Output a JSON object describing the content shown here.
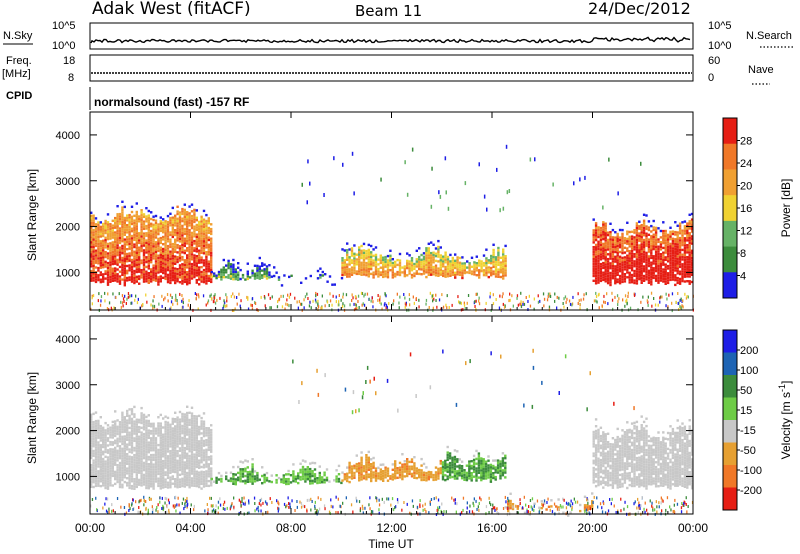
{
  "header": {
    "station": "Adak West (fitACF)",
    "beam": "Beam 11",
    "date": "24/Dec/2012"
  },
  "panels": {
    "nsky": {
      "label": "N.Sky",
      "tick_top": "10^5",
      "tick_bot": "10^0",
      "right_label": "N.Search",
      "right_tick_top": "10^5",
      "right_tick_bot": "10^0"
    },
    "freq": {
      "label_line1": "Freq.",
      "label_line2": "[MHz]",
      "tick_top": "18",
      "tick_bot": "8",
      "right_label": "Nave",
      "right_tick_top": "60",
      "right_tick_bot": "0"
    },
    "cpid": {
      "label": "CPID",
      "text": "normalsound (fast) -157 RF"
    }
  },
  "colors": {
    "power_scale": [
      "#1e1ee6",
      "#3c8c3c",
      "#66b266",
      "#f0d232",
      "#f0a032",
      "#f07828",
      "#e61e14"
    ],
    "velocity_scale": [
      "#1e1ee6",
      "#1e64b4",
      "#3c8c3c",
      "#6ecc46",
      "#c8c8c8",
      "#e6a032",
      "#f07828",
      "#e61e14"
    ]
  },
  "chart_data": [
    {
      "type": "heatmap",
      "name": "power",
      "ylabel": "Slant Range [km]",
      "xlabel": "Time UT",
      "ylim": [
        180,
        4500
      ],
      "yticks": [
        "1000",
        "2000",
        "3000",
        "4000"
      ],
      "xticks": [
        "00:00",
        "04:00",
        "08:00",
        "12:00",
        "16:00",
        "20:00",
        "00:00"
      ],
      "colorbar": {
        "label": "Power [dB]",
        "ticks": [
          "4",
          "8",
          "12",
          "16",
          "20",
          "24",
          "28"
        ],
        "range": [
          0,
          30
        ]
      },
      "regions": [
        {
          "t0": 0.0,
          "t1": 4.8,
          "r0": 700,
          "r1": 2500,
          "level": 22
        },
        {
          "t0": 4.8,
          "t1": 7.5,
          "r0": 800,
          "r1": 1300,
          "level": 6
        },
        {
          "t0": 7.5,
          "t1": 10.0,
          "r0": 800,
          "r1": 1050,
          "level": 5
        },
        {
          "t0": 10.0,
          "t1": 16.5,
          "r0": 850,
          "r1": 1600,
          "level": 16
        },
        {
          "t0": 20.0,
          "t1": 24.0,
          "r0": 700,
          "r1": 2200,
          "level": 26
        }
      ]
    },
    {
      "type": "heatmap",
      "name": "velocity",
      "ylabel": "Slant Range [km]",
      "xlabel": "Time UT",
      "ylim": [
        180,
        4500
      ],
      "yticks": [
        "1000",
        "2000",
        "3000",
        "4000"
      ],
      "xticks": [
        "00:00",
        "04:00",
        "08:00",
        "12:00",
        "16:00",
        "20:00",
        "00:00"
      ],
      "colorbar": {
        "label": "Velocity [m s^-1]",
        "ticks": [
          "200",
          "100",
          "50",
          "15",
          "-15",
          "-50",
          "-100",
          "-200"
        ],
        "range": [
          -250,
          250
        ]
      },
      "regions": [
        {
          "t0": 0.0,
          "t1": 4.8,
          "r0": 700,
          "r1": 2500,
          "velocity": 0
        },
        {
          "t0": 4.8,
          "t1": 10.0,
          "r0": 800,
          "r1": 1300,
          "velocity": 30
        },
        {
          "t0": 10.0,
          "t1": 14.0,
          "r0": 850,
          "r1": 1500,
          "velocity": -40
        },
        {
          "t0": 14.0,
          "t1": 16.5,
          "r0": 850,
          "r1": 1600,
          "velocity": 35
        },
        {
          "t0": 16.5,
          "t1": 20.0,
          "r0": 200,
          "r1": 500,
          "velocity": -45
        },
        {
          "t0": 20.0,
          "t1": 24.0,
          "r0": 700,
          "r1": 2200,
          "velocity": 0
        }
      ]
    }
  ],
  "xlabel": "Time UT"
}
